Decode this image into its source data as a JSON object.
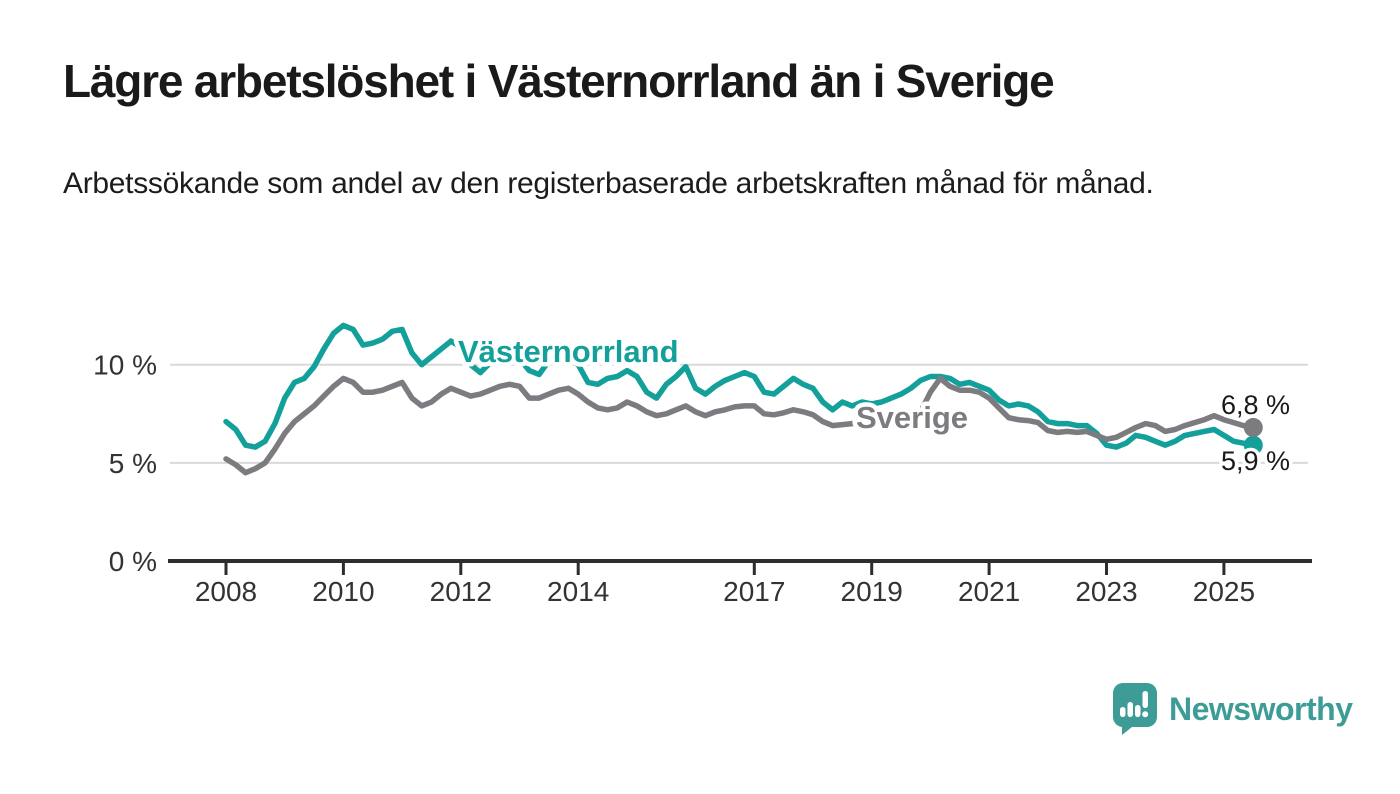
{
  "header": {
    "title": "Lägre arbetslöshet i Västernorrland än i Sverige",
    "subtitle": "Arbetssökande som andel av den registerbaserade arbetskraften månad för månad."
  },
  "footer": {
    "brand": "Newsworthy"
  },
  "colors": {
    "vasternorrland_line": "#14a09a",
    "sverige_line": "#7c7c80",
    "gridline": "#d9d9d9",
    "axis": "#2d2d2d",
    "text": "#1a1a1a",
    "logo_teal": "#3e9c97"
  },
  "chart_data": {
    "type": "line",
    "title": "Lägre arbetslöshet i Västernorrland än i Sverige",
    "subtitle": "Arbetssökande som andel av den registerbaserade arbetskraften månad för månad.",
    "unit": "%",
    "grid": "horizontal",
    "ylim": [
      0,
      12.5
    ],
    "x_start_year": 2008.0,
    "x_step_months": 2,
    "xticks": [
      2008,
      2010,
      2012,
      2014,
      2017,
      2019,
      2021,
      2023,
      2025
    ],
    "yticks": [
      {
        "label": "0 %",
        "value": 0
      },
      {
        "label": "5 %",
        "value": 5
      },
      {
        "label": "10 %",
        "value": 10
      }
    ],
    "series": [
      {
        "name": "Västernorrland",
        "color": "#14a09a",
        "end_label": "5,9 %",
        "end_value": 5.9,
        "values": [
          7.1,
          6.7,
          5.9,
          5.8,
          6.1,
          7.0,
          8.3,
          9.1,
          9.3,
          9.9,
          10.8,
          11.6,
          12.0,
          11.8,
          11.0,
          11.1,
          11.3,
          11.7,
          11.8,
          10.6,
          10.0,
          10.4,
          10.8,
          11.2,
          10.9,
          10.0,
          9.6,
          10.1,
          10.5,
          10.4,
          10.3,
          9.7,
          9.5,
          10.2,
          10.5,
          10.4,
          10.0,
          9.1,
          9.0,
          9.3,
          9.4,
          9.7,
          9.4,
          8.6,
          8.3,
          9.0,
          9.4,
          9.9,
          8.8,
          8.5,
          8.9,
          9.2,
          9.4,
          9.6,
          9.4,
          8.6,
          8.5,
          8.9,
          9.3,
          9.0,
          8.8,
          8.1,
          7.7,
          8.1,
          7.9,
          8.1,
          8.0,
          8.1,
          8.3,
          8.5,
          8.8,
          9.2,
          9.4,
          9.4,
          9.3,
          9.0,
          9.1,
          8.9,
          8.7,
          8.2,
          7.9,
          8.0,
          7.9,
          7.6,
          7.1,
          7.0,
          7.0,
          6.9,
          6.9,
          6.5,
          5.9,
          5.8,
          6.0,
          6.4,
          6.3,
          6.1,
          5.9,
          6.1,
          6.4,
          6.5,
          6.6,
          6.7,
          6.4,
          6.1,
          6.0,
          5.9
        ]
      },
      {
        "name": "Sverige",
        "color": "#7c7c80",
        "end_label": "6,8 %",
        "end_value": 6.8,
        "values": [
          5.2,
          4.9,
          4.5,
          4.7,
          5.0,
          5.7,
          6.5,
          7.1,
          7.5,
          7.9,
          8.4,
          8.9,
          9.3,
          9.1,
          8.6,
          8.6,
          8.7,
          8.9,
          9.1,
          8.3,
          7.9,
          8.1,
          8.5,
          8.8,
          8.6,
          8.4,
          8.5,
          8.7,
          8.9,
          9.0,
          8.9,
          8.3,
          8.3,
          8.5,
          8.7,
          8.8,
          8.5,
          8.1,
          7.8,
          7.7,
          7.8,
          8.1,
          7.9,
          7.6,
          7.4,
          7.5,
          7.7,
          7.9,
          7.6,
          7.4,
          7.6,
          7.7,
          7.85,
          7.9,
          7.9,
          7.5,
          7.45,
          7.55,
          7.7,
          7.6,
          7.45,
          7.1,
          6.9,
          6.95,
          7.0,
          7.05,
          6.9,
          6.95,
          7.0,
          7.0,
          7.1,
          7.6,
          8.6,
          9.3,
          8.9,
          8.7,
          8.7,
          8.6,
          8.3,
          7.8,
          7.3,
          7.2,
          7.15,
          7.05,
          6.65,
          6.55,
          6.6,
          6.55,
          6.6,
          6.4,
          6.2,
          6.3,
          6.55,
          6.8,
          7.0,
          6.9,
          6.6,
          6.7,
          6.9,
          7.05,
          7.2,
          7.4,
          7.2,
          7.05,
          6.9,
          6.8
        ]
      }
    ]
  }
}
